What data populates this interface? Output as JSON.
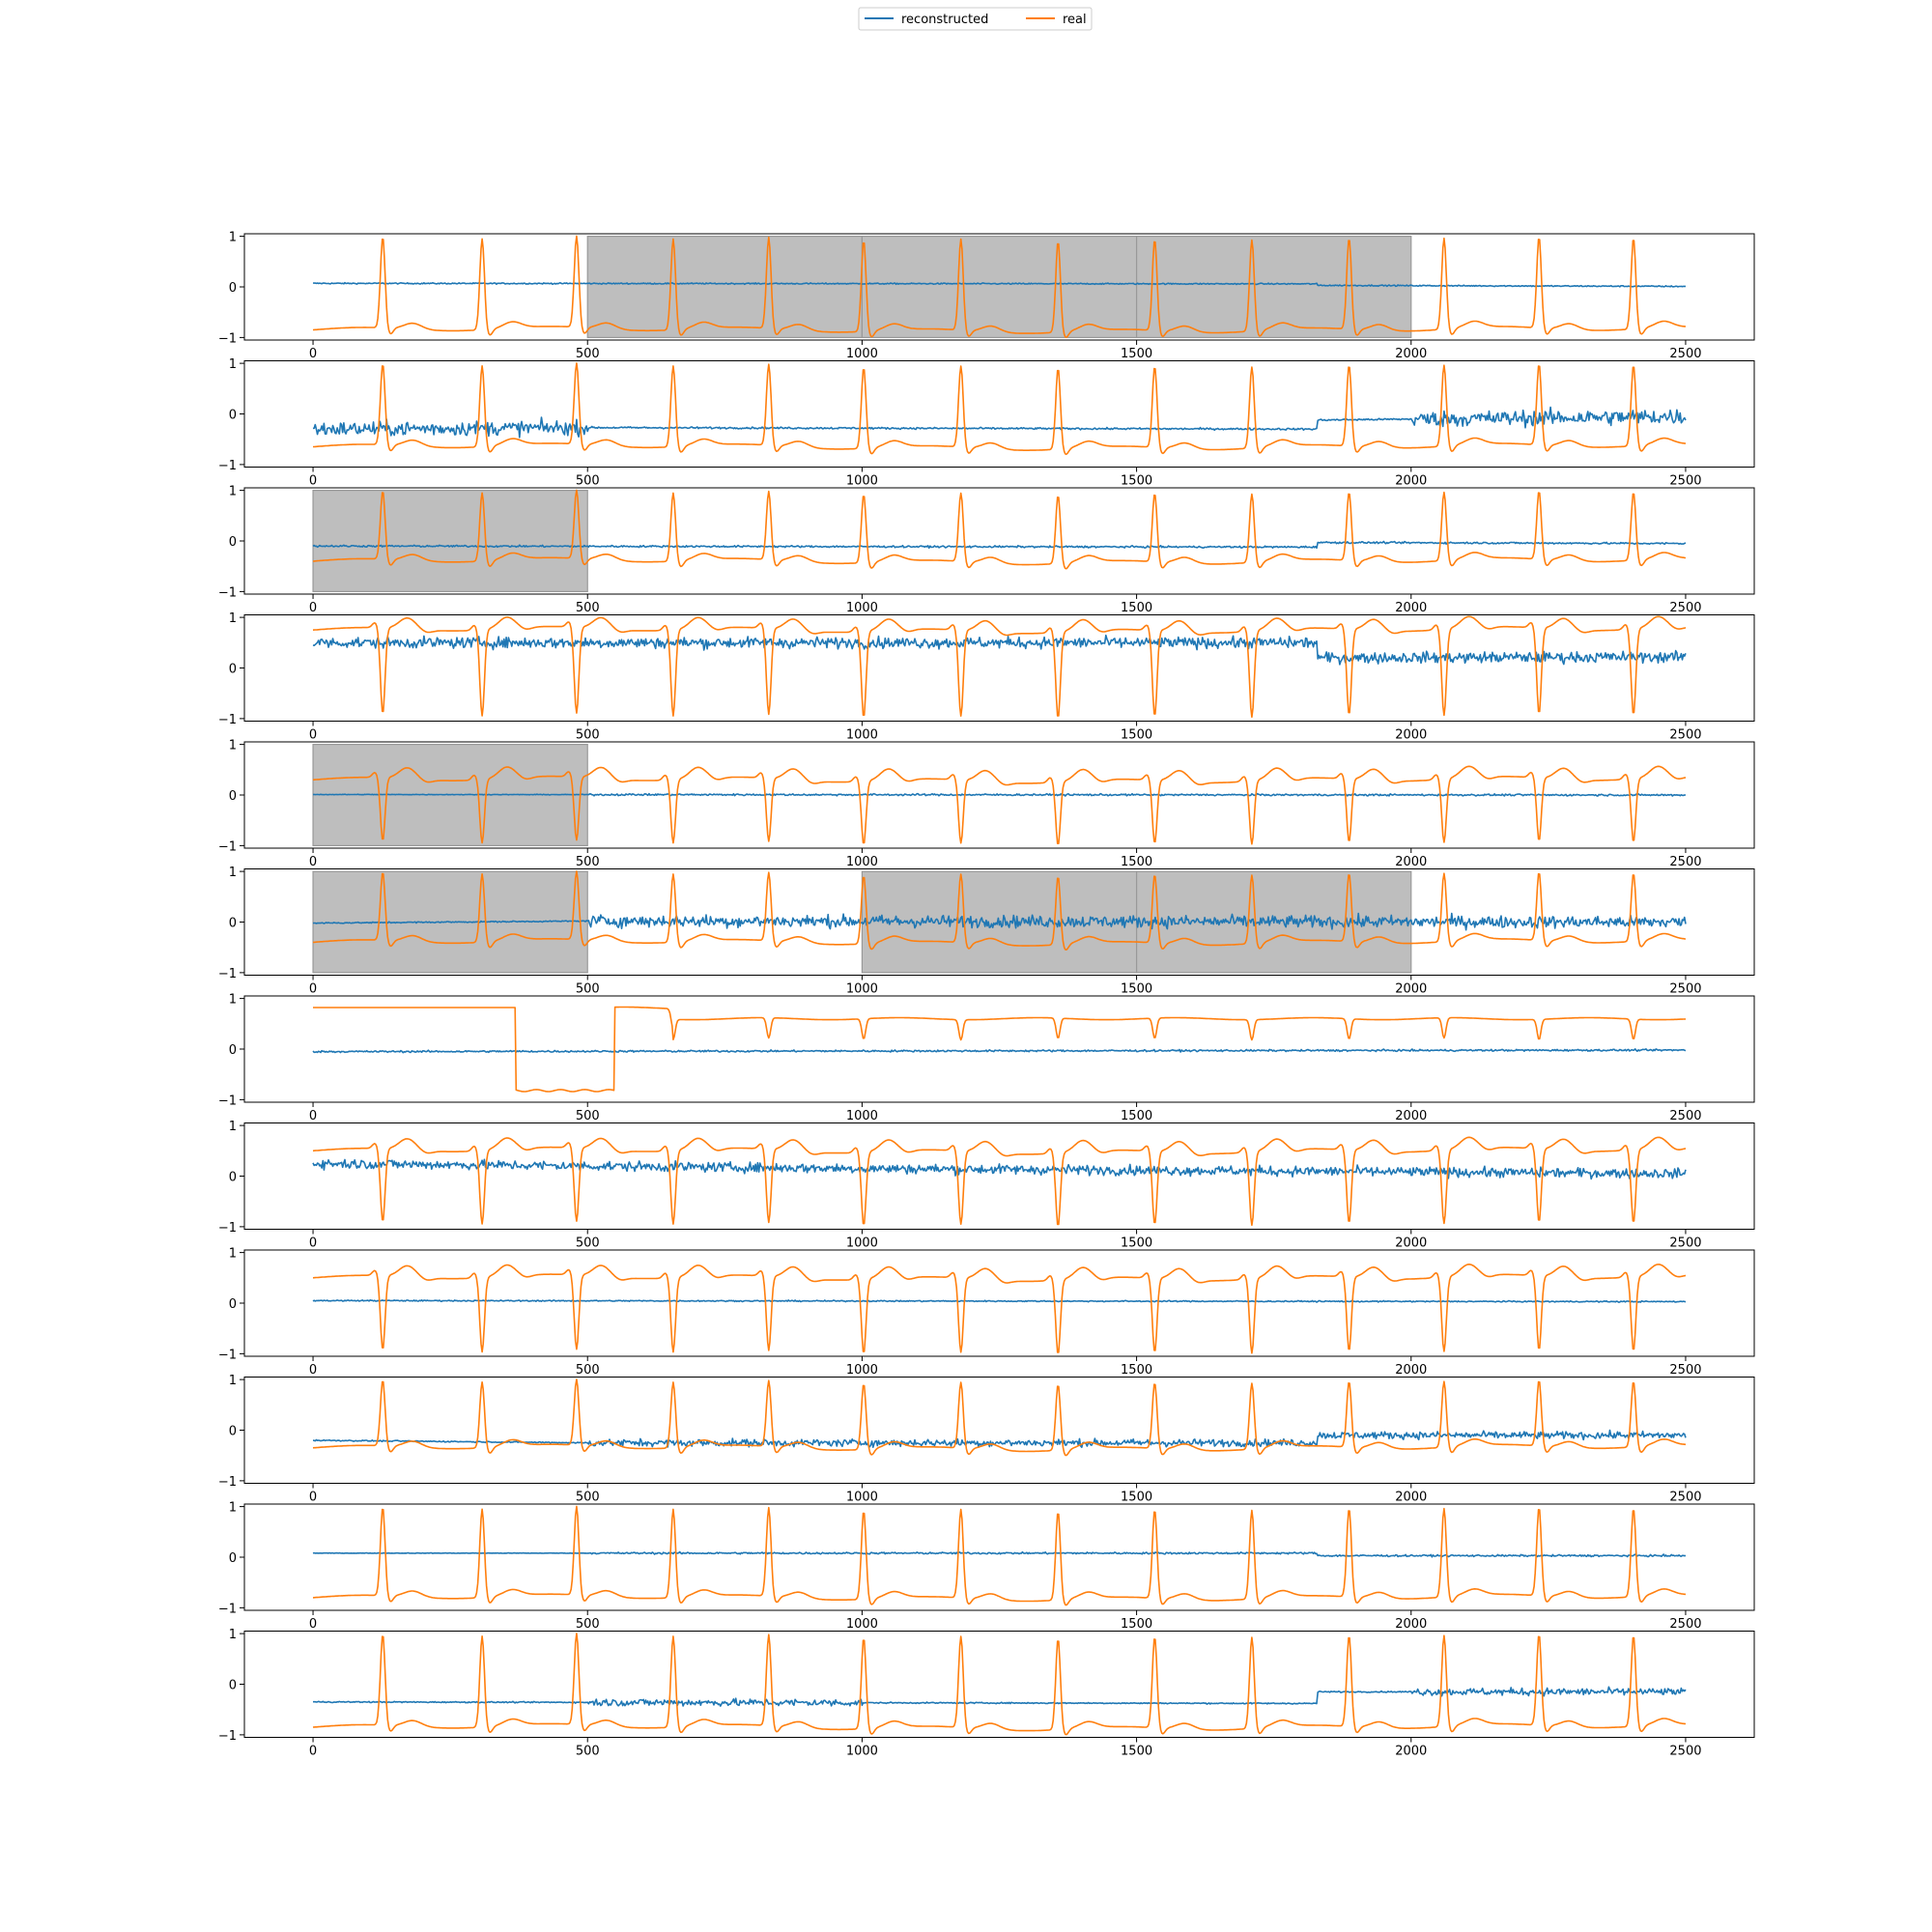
{
  "legend": {
    "placement": "top-center",
    "entries": [
      {
        "label": "reconstructed",
        "color": "#1f77b4"
      },
      {
        "label": "real",
        "color": "#ff7f0e"
      }
    ]
  },
  "chart_data": {
    "type": "line",
    "title": "",
    "xlabel": "",
    "ylabel": "",
    "layout": "12 stacked panels",
    "x_range": [
      0,
      2500
    ],
    "xlim": [
      -125,
      2625
    ],
    "ylim": [
      -1.05,
      1.05
    ],
    "x_ticks": [
      0,
      500,
      1000,
      1500,
      2000,
      2500
    ],
    "y_ticks": [
      -1,
      0,
      1
    ],
    "grid": false,
    "colors": {
      "reconstructed": "#1f77b4",
      "real": "#ff7f0e",
      "mask": "#bebebe"
    },
    "beat_positions": [
      127,
      308,
      480,
      656,
      830,
      1003,
      1180,
      1357,
      1533,
      1710,
      1887,
      2060,
      2233,
      2405
    ],
    "panels": [
      {
        "panel": 1,
        "masked_regions": [
          [
            500,
            1000
          ],
          [
            1000,
            1500
          ],
          [
            1500,
            2000
          ]
        ],
        "series": [
          {
            "name": "reconstructed",
            "baseline": [
              [
                0,
                0.07
              ],
              [
                1830,
                0.06
              ],
              [
                1830,
                0.03
              ],
              [
                2500,
                0.01
              ]
            ],
            "noise": 0.01
          },
          {
            "name": "real",
            "waveform": "positive spikes",
            "baseline": -0.85,
            "peak": 0.95,
            "trough": -0.97
          }
        ]
      },
      {
        "panel": 2,
        "masked_regions": [],
        "series": [
          {
            "name": "reconstructed",
            "baseline": [
              [
                0,
                -0.3
              ],
              [
                500,
                -0.27
              ],
              [
                1830,
                -0.3
              ],
              [
                1830,
                -0.12
              ],
              [
                2500,
                -0.05
              ]
            ],
            "noise_segments": [
              [
                0,
                500,
                0.12
              ],
              [
                500,
                2000,
                0.015
              ],
              [
                2000,
                2500,
                0.13
              ]
            ]
          },
          {
            "name": "real",
            "waveform": "positive spikes",
            "baseline": -0.65,
            "peak": 0.95,
            "trough": -0.95
          }
        ]
      },
      {
        "panel": 3,
        "masked_regions": [
          [
            0,
            500
          ]
        ],
        "series": [
          {
            "name": "reconstructed",
            "baseline": [
              [
                0,
                -0.1
              ],
              [
                1830,
                -0.12
              ],
              [
                1830,
                -0.03
              ],
              [
                2500,
                -0.05
              ]
            ],
            "noise": 0.015
          },
          {
            "name": "real",
            "waveform": "positive spikes",
            "baseline": -0.4,
            "peak": 0.95,
            "trough": -0.9
          }
        ]
      },
      {
        "panel": 4,
        "masked_regions": [],
        "series": [
          {
            "name": "reconstructed",
            "baseline": [
              [
                0,
                0.5
              ],
              [
                1830,
                0.5
              ],
              [
                1830,
                0.2
              ],
              [
                2500,
                0.22
              ]
            ],
            "noise": 0.09
          },
          {
            "name": "real",
            "waveform": "negative spikes",
            "baseline": 0.75,
            "peak": 0.95,
            "trough": -0.95
          }
        ]
      },
      {
        "panel": 5,
        "masked_regions": [
          [
            0,
            500
          ]
        ],
        "series": [
          {
            "name": "reconstructed",
            "baseline": [
              [
                0,
                0.01
              ],
              [
                2500,
                0.0
              ]
            ],
            "noise_segments": [
              [
                0,
                500,
                0.005
              ],
              [
                500,
                2500,
                0.015
              ]
            ]
          },
          {
            "name": "real",
            "waveform": "negative spikes with T-wave",
            "baseline": 0.3,
            "peak": 0.9,
            "trough": -0.95
          }
        ]
      },
      {
        "panel": 6,
        "masked_regions": [
          [
            0,
            500
          ],
          [
            1000,
            1500
          ],
          [
            1500,
            2000
          ]
        ],
        "series": [
          {
            "name": "reconstructed",
            "baseline": [
              [
                0,
                -0.02
              ],
              [
                500,
                0.02
              ],
              [
                2500,
                0.0
              ]
            ],
            "noise_segments": [
              [
                0,
                500,
                0.01
              ],
              [
                500,
                2500,
                0.1
              ]
            ]
          },
          {
            "name": "real",
            "waveform": "positive spikes",
            "baseline": -0.4,
            "peak": 0.95,
            "trough": -0.95
          }
        ]
      },
      {
        "panel": 7,
        "masked_regions": [],
        "series": [
          {
            "name": "reconstructed",
            "baseline": [
              [
                0,
                -0.05
              ],
              [
                2500,
                -0.02
              ]
            ],
            "noise": 0.015
          },
          {
            "name": "real",
            "waveform": "square step then small negative dips",
            "baseline": 0.6,
            "step_high": 0.82,
            "step_low": -0.82,
            "step_interval": [
              370,
              550
            ],
            "trough": 0.2
          }
        ]
      },
      {
        "panel": 8,
        "masked_regions": [],
        "series": [
          {
            "name": "reconstructed",
            "baseline": [
              [
                0,
                0.25
              ],
              [
                1000,
                0.15
              ],
              [
                2500,
                0.05
              ]
            ],
            "noise": 0.08
          },
          {
            "name": "real",
            "waveform": "negative spikes with T-wave",
            "baseline": 0.5,
            "peak": 0.95,
            "trough": -0.95
          }
        ]
      },
      {
        "panel": 9,
        "masked_regions": [],
        "series": [
          {
            "name": "reconstructed",
            "baseline": [
              [
                0,
                0.05
              ],
              [
                2500,
                0.03
              ]
            ],
            "noise": 0.01
          },
          {
            "name": "real",
            "waveform": "negative spikes with T-wave",
            "baseline": 0.5,
            "peak": 0.95,
            "trough": -0.97
          }
        ]
      },
      {
        "panel": 10,
        "masked_regions": [],
        "series": [
          {
            "name": "reconstructed",
            "baseline": [
              [
                0,
                -0.2
              ],
              [
                500,
                -0.25
              ],
              [
                1830,
                -0.25
              ],
              [
                1830,
                -0.1
              ],
              [
                2500,
                -0.1
              ]
            ],
            "noise_segments": [
              [
                0,
                500,
                0.01
              ],
              [
                500,
                2500,
                0.06
              ]
            ]
          },
          {
            "name": "real",
            "waveform": "positive spikes",
            "baseline": -0.35,
            "peak": 0.95,
            "trough": -0.95
          }
        ]
      },
      {
        "panel": 11,
        "masked_regions": [],
        "series": [
          {
            "name": "reconstructed",
            "baseline": [
              [
                0,
                0.08
              ],
              [
                1830,
                0.08
              ],
              [
                1830,
                0.03
              ],
              [
                2500,
                0.03
              ]
            ],
            "noise_segments": [
              [
                0,
                500,
                0.004
              ],
              [
                500,
                2500,
                0.015
              ]
            ]
          },
          {
            "name": "real",
            "waveform": "positive spikes",
            "baseline": -0.8,
            "peak": 0.95,
            "trough": -0.98
          }
        ]
      },
      {
        "panel": 12,
        "masked_regions": [],
        "series": [
          {
            "name": "reconstructed",
            "baseline": [
              [
                0,
                -0.35
              ],
              [
                1830,
                -0.38
              ],
              [
                1830,
                -0.15
              ],
              [
                2500,
                -0.15
              ]
            ],
            "noise_segments": [
              [
                0,
                500,
                0.01
              ],
              [
                500,
                1000,
                0.06
              ],
              [
                1000,
                2000,
                0.01
              ],
              [
                2000,
                2500,
                0.06
              ]
            ]
          },
          {
            "name": "real",
            "waveform": "positive spikes",
            "baseline": -0.85,
            "peak": 0.95,
            "trough": -0.98
          }
        ]
      }
    ]
  }
}
